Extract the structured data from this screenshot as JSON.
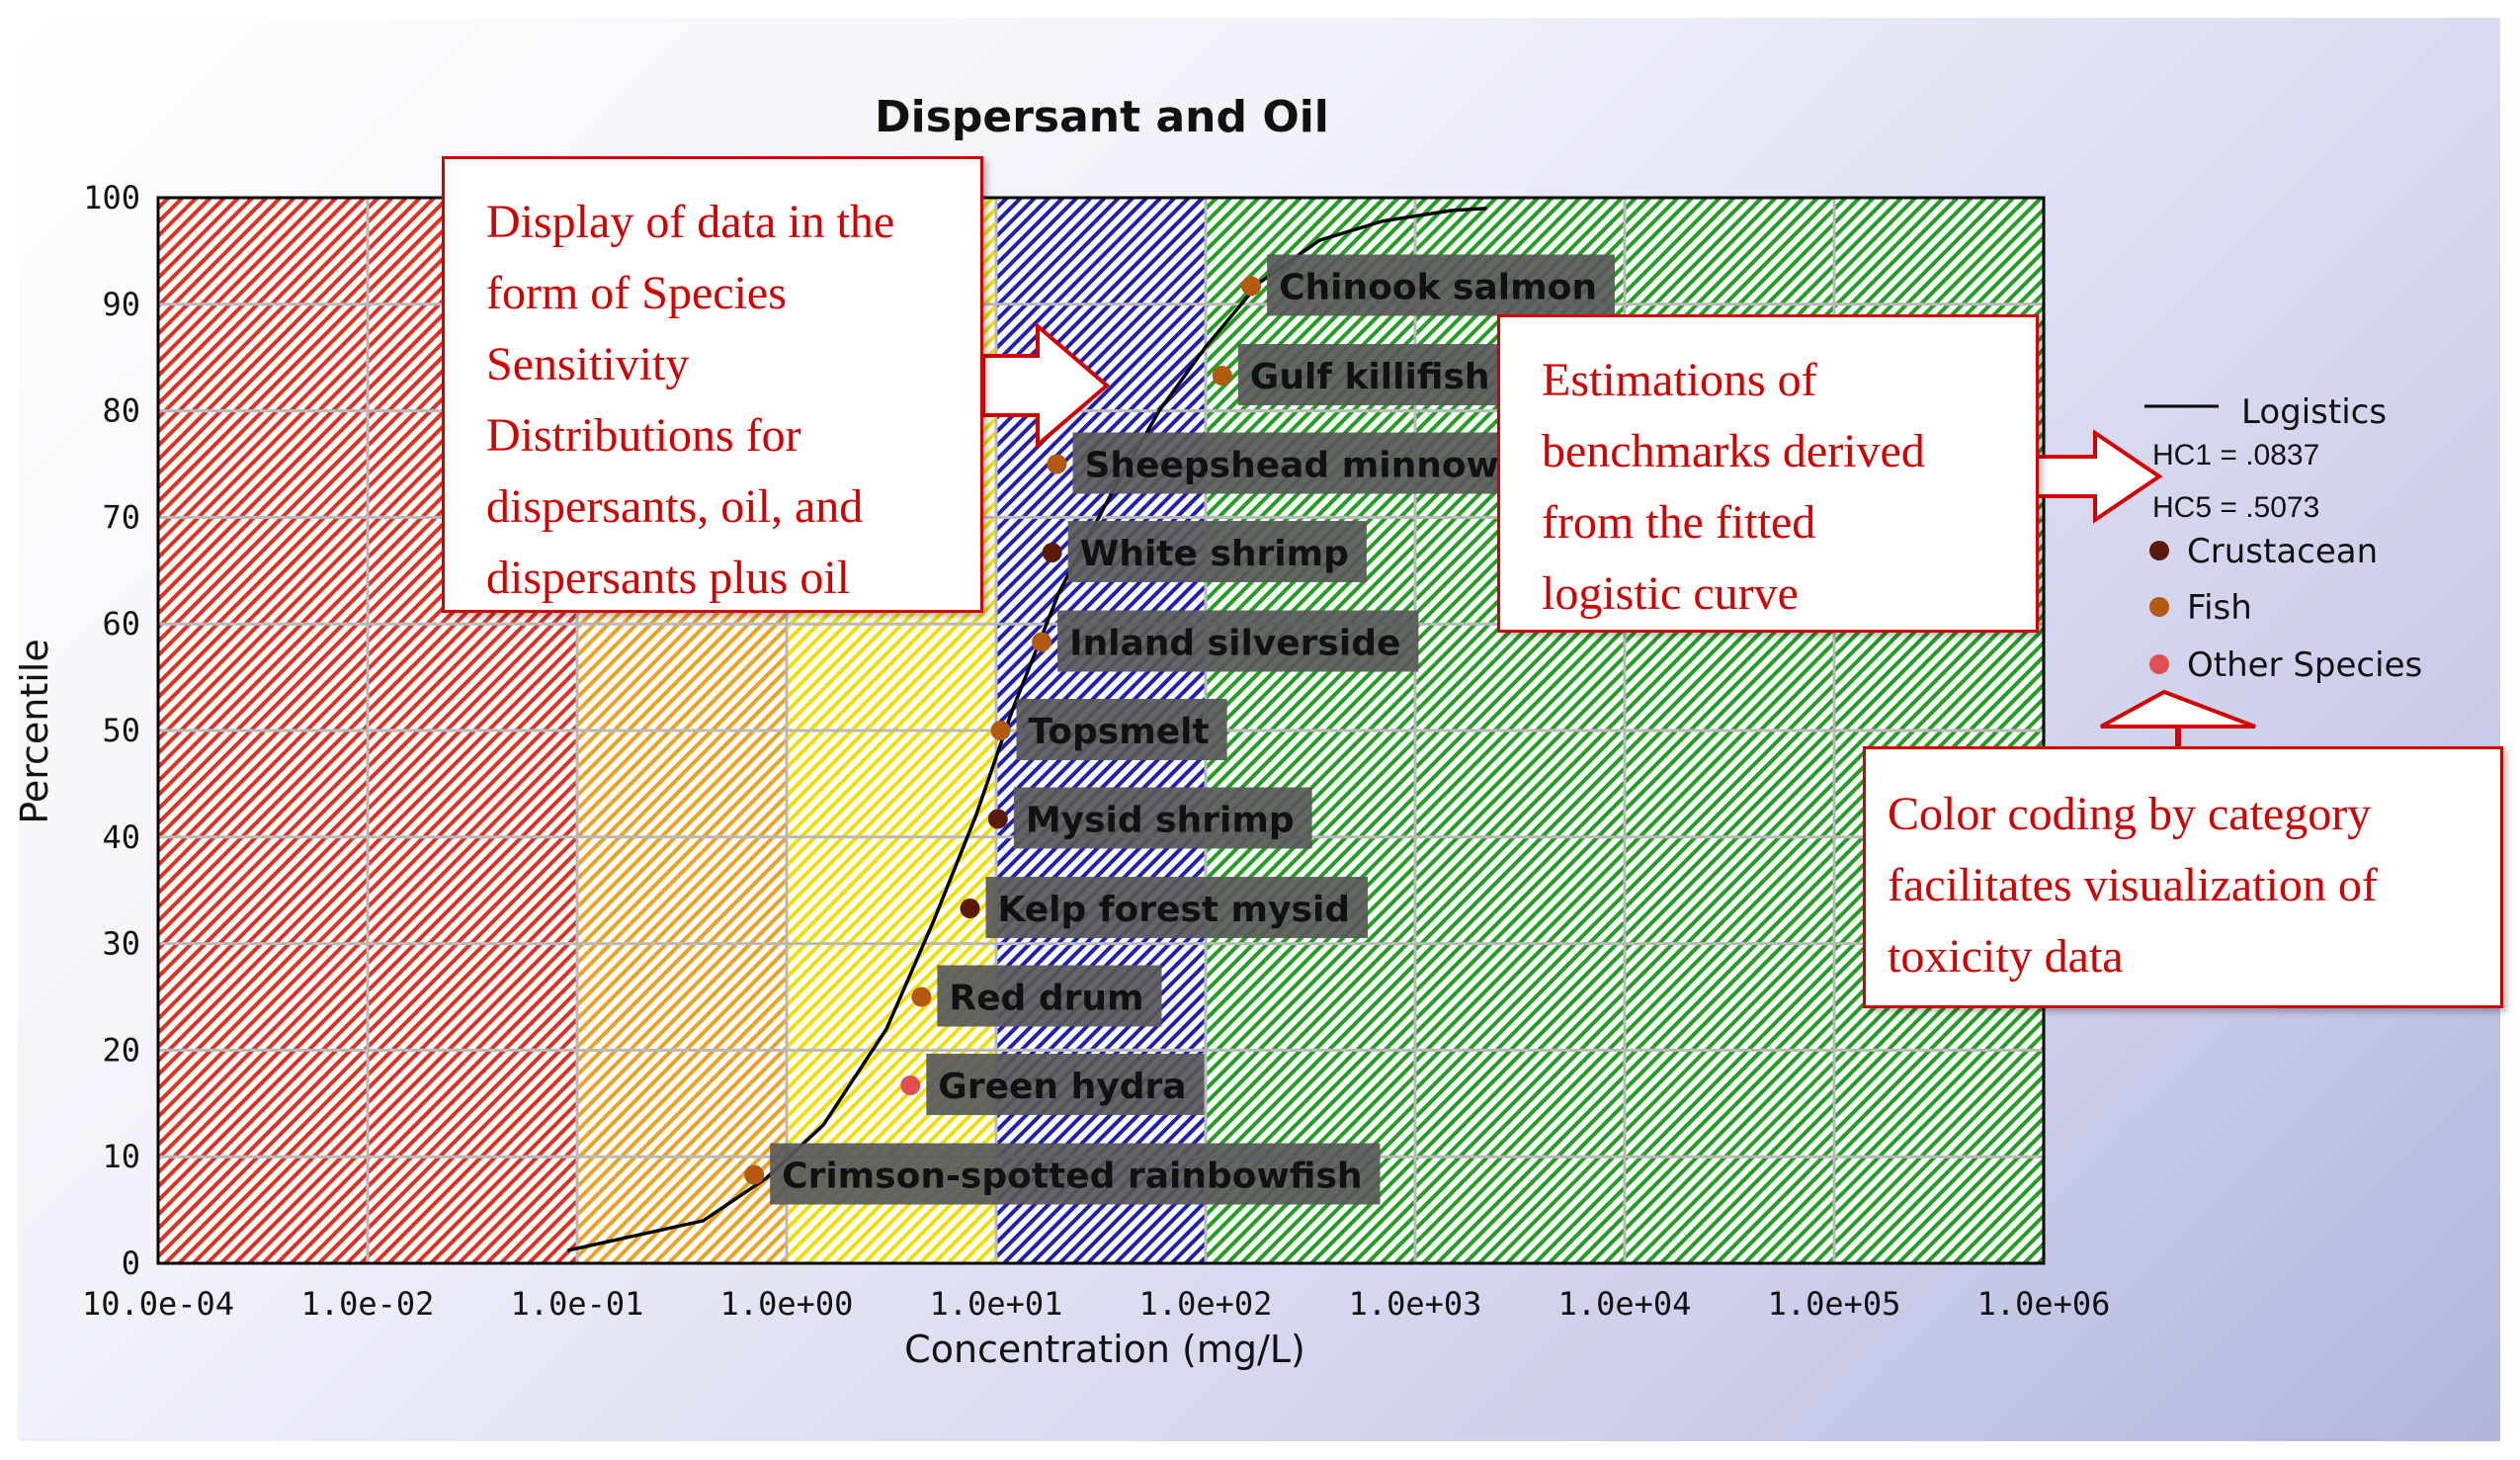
{
  "chart_data": {
    "type": "scatter",
    "title": "Dispersant and Oil",
    "xlabel": "Concentration (mg/L)",
    "ylabel": "Percentile",
    "x_scale": "log",
    "xlim": [
      0.001,
      1000000
    ],
    "ylim": [
      0,
      100
    ],
    "x_tick_labels": [
      "10.0e-04",
      "1.0e-02",
      "1.0e-01",
      "1.0e+00",
      "1.0e+01",
      "1.0e+02",
      "1.0e+03",
      "1.0e+04",
      "1.0e+05",
      "1.0e+06"
    ],
    "y_ticks": [
      0,
      10,
      20,
      30,
      40,
      50,
      60,
      70,
      80,
      90,
      100
    ],
    "grid": true,
    "background_bands": [
      {
        "from": 0.001,
        "to": 0.1,
        "color": "#e03020"
      },
      {
        "from": 0.1,
        "to": 1.0,
        "color": "#f0a020"
      },
      {
        "from": 1.0,
        "to": 10.0,
        "color": "#f0e000"
      },
      {
        "from": 10.0,
        "to": 100.0,
        "color": "#2020b0"
      },
      {
        "from": 100.0,
        "to": 1000000,
        "color": "#20a020"
      }
    ],
    "points": [
      {
        "label": "Crimson-spotted rainbowfish",
        "x": 0.7,
        "y": 8.3,
        "category": "Fish"
      },
      {
        "label": "Green hydra",
        "x": 3.9,
        "y": 16.7,
        "category": "Other Species"
      },
      {
        "label": "Red drum",
        "x": 4.4,
        "y": 25.0,
        "category": "Fish"
      },
      {
        "label": "Kelp forest mysid",
        "x": 7.5,
        "y": 33.3,
        "category": "Crustacean"
      },
      {
        "label": "Mysid shrimp",
        "x": 10.2,
        "y": 41.7,
        "category": "Crustacean"
      },
      {
        "label": "Topsmelt",
        "x": 10.5,
        "y": 50.0,
        "category": "Fish"
      },
      {
        "label": "Inland silverside",
        "x": 16.5,
        "y": 58.3,
        "category": "Fish"
      },
      {
        "label": "White shrimp",
        "x": 18.5,
        "y": 66.7,
        "category": "Crustacean"
      },
      {
        "label": "Sheepshead minnow",
        "x": 19.5,
        "y": 75.0,
        "category": "Fish"
      },
      {
        "label": "Gulf killifish",
        "x": 120,
        "y": 83.3,
        "category": "Fish"
      },
      {
        "label": "Chinook salmon",
        "x": 165,
        "y": 91.7,
        "category": "Fish"
      }
    ],
    "series": [
      {
        "name": "Logistics",
        "x": [
          0.09,
          0.4,
          0.8,
          1.5,
          3,
          5,
          8,
          12,
          20,
          35,
          60,
          100,
          180,
          350,
          700,
          1500,
          2200
        ],
        "y": [
          1.2,
          4,
          8,
          13,
          22,
          32,
          42,
          52,
          63,
          72,
          80,
          86,
          92,
          96,
          97.8,
          98.8,
          99
        ]
      }
    ]
  },
  "legend": {
    "line_label": "Logistics",
    "hc1": "HC1 =  .0837",
    "hc5": "HC5 = .5073",
    "categories": [
      {
        "name": "Crustacean",
        "color": "#5a1a08"
      },
      {
        "name": "Fish",
        "color": "#b35a10"
      },
      {
        "name": "Other Species",
        "color": "#e05050"
      }
    ]
  },
  "callouts": {
    "ssd_lines": [
      "Display of data in the",
      "form of Species",
      "Sensitivity",
      "Distributions for",
      "dispersants, oil, and",
      "dispersants plus oil"
    ],
    "benchmarks_lines": [
      "Estimations of",
      "benchmarks derived",
      "from the fitted",
      "logistic curve"
    ],
    "color_lines": [
      "Color coding by category",
      "facilitates visualization of",
      "toxicity data"
    ]
  },
  "colors": {
    "callout_border": "#d40000",
    "callout_text": "#d40000",
    "label_box": "#585858"
  }
}
